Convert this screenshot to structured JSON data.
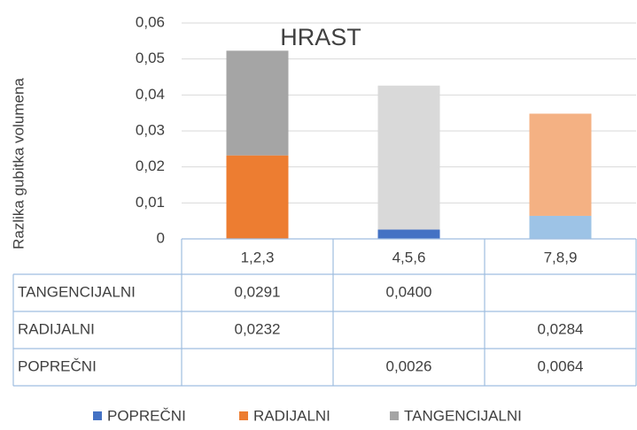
{
  "chart_data": {
    "type": "stacked_bar",
    "title": "HRAST",
    "ylabel": "Razlika gubitka volumena",
    "categories": [
      "1,2,3",
      "4,5,6",
      "7,8,9"
    ],
    "series": [
      {
        "name": "POPREČNI",
        "color": "#4472c4",
        "point_colors": [
          "#4472c4",
          "#4472c4",
          "#9dc3e6"
        ],
        "values": [
          null,
          0.0026,
          0.0064
        ],
        "value_labels": [
          null,
          "0,0026",
          "0,0064"
        ]
      },
      {
        "name": "RADIJALNI",
        "color": "#ed7d31",
        "point_colors": [
          "#ed7d31",
          "#ed7d31",
          "#f4b183"
        ],
        "values": [
          0.0232,
          null,
          0.0284
        ],
        "value_labels": [
          "0,0232",
          null,
          "0,0284"
        ]
      },
      {
        "name": "TANGENCIJALNI",
        "color": "#a5a5a5",
        "point_colors": [
          "#a5a5a5",
          "#d9d9d9",
          "#d9d9d9"
        ],
        "values": [
          0.0291,
          0.04,
          null
        ],
        "value_labels": [
          "0,0291",
          "0,0400",
          null
        ]
      }
    ],
    "ylim": [
      0,
      0.06
    ],
    "yticks": [
      0,
      {
        "value": 0.01,
        "label": "0,01"
      },
      {
        "value": 0.02,
        "label": "0,02"
      },
      {
        "value": 0.03,
        "label": "0,03"
      },
      {
        "value": 0.04,
        "label": "0,04"
      },
      {
        "value": 0.05,
        "label": "0,05"
      },
      {
        "value": 0.06,
        "label": "0,06"
      }
    ],
    "grid": true,
    "legend": "bottom",
    "data_table": true
  }
}
